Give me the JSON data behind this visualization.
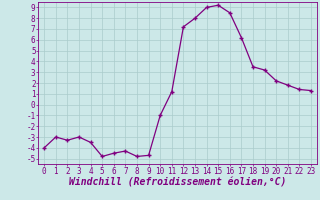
{
  "x": [
    0,
    1,
    2,
    3,
    4,
    5,
    6,
    7,
    8,
    9,
    10,
    11,
    12,
    13,
    14,
    15,
    16,
    17,
    18,
    19,
    20,
    21,
    22,
    23
  ],
  "y": [
    -4.0,
    -3.0,
    -3.3,
    -3.0,
    -3.5,
    -4.8,
    -4.5,
    -4.3,
    -4.8,
    -4.7,
    -1.0,
    1.2,
    7.2,
    8.0,
    9.0,
    9.2,
    8.5,
    6.2,
    3.5,
    3.2,
    2.2,
    1.8,
    1.4,
    1.3
  ],
  "line_color": "#800080",
  "marker": "+",
  "marker_size": 3,
  "bg_color": "#cce8e8",
  "grid_color": "#aacccc",
  "xlabel": "Windchill (Refroidissement éolien,°C)",
  "xlim": [
    -0.5,
    23.5
  ],
  "ylim": [
    -5.5,
    9.5
  ],
  "xticks": [
    0,
    1,
    2,
    3,
    4,
    5,
    6,
    7,
    8,
    9,
    10,
    11,
    12,
    13,
    14,
    15,
    16,
    17,
    18,
    19,
    20,
    21,
    22,
    23
  ],
  "yticks": [
    -5,
    -4,
    -3,
    -2,
    -1,
    0,
    1,
    2,
    3,
    4,
    5,
    6,
    7,
    8,
    9
  ],
  "tick_color": "#800080",
  "label_color": "#800080",
  "font_size_ticks": 5.5,
  "font_size_label": 7,
  "linewidth": 0.9,
  "markeredgewidth": 1.0
}
